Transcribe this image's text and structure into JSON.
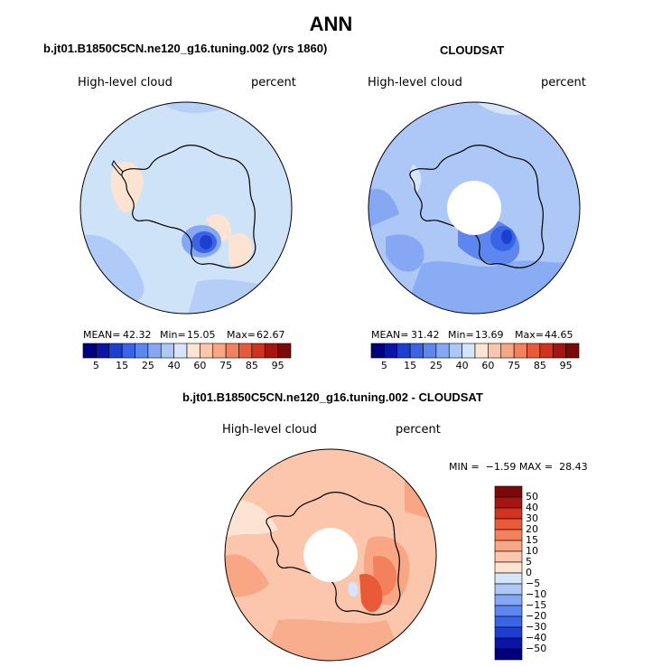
{
  "figure": {
    "title": "ANN",
    "colors": {
      "ocean_background_left": "#cfe3f8",
      "ocean_background_right": "#a9c6f1",
      "diff_background": "#fbc6ad",
      "coastline": "#000000"
    }
  },
  "panels": [
    {
      "id": "model",
      "title": "b.jt01.B1850C5CN.ne120_g16.tuning.002 (yrs 1860)",
      "variable": "High-level cloud",
      "units": "percent",
      "stats": {
        "mean_label": "MEAN=",
        "mean": "42.32",
        "min_label": "Min=",
        "min": "15.05",
        "max_label": "Max=",
        "max": "62.67"
      }
    },
    {
      "id": "obs",
      "title": "CLOUDSAT",
      "variable": "High-level cloud",
      "units": "percent",
      "stats": {
        "mean_label": "MEAN=",
        "mean": "31.42",
        "min_label": "Min=",
        "min": "13.69",
        "max_label": "Max=",
        "max": "44.65"
      }
    },
    {
      "id": "diff",
      "title": "b.jt01.B1850C5CN.ne120_g16.tuning.002 - CLOUDSAT",
      "variable": "High-level cloud",
      "units": "percent",
      "minmax_text": "MIN =  −1.59 MAX =  28.43"
    }
  ],
  "colorbar_abs": {
    "colors": [
      "#00007f",
      "#0a14a8",
      "#1c3fd0",
      "#3a64e6",
      "#5e86ef",
      "#86a8f4",
      "#adc8f7",
      "#d5e5fa",
      "#fde3d2",
      "#fbc6ab",
      "#f8a684",
      "#f3815d",
      "#e95a38",
      "#d03420",
      "#a61512",
      "#7a0a0a"
    ],
    "tick_labels": [
      "5",
      "15",
      "25",
      "40",
      "60",
      "75",
      "85",
      "95"
    ]
  },
  "colorbar_diff": {
    "colors": [
      "#00007f",
      "#0a14a8",
      "#1c3fd0",
      "#3a64e6",
      "#5e86ef",
      "#86a8f4",
      "#adc8f7",
      "#d5e5fa",
      "#fde3d2",
      "#fbc6ab",
      "#f8a684",
      "#f3815d",
      "#e95a38",
      "#d03420",
      "#a61512",
      "#7a0a0a"
    ],
    "tick_labels": [
      "50",
      "40",
      "30",
      "20",
      "15",
      "10",
      "5",
      "0",
      "−5",
      "−10",
      "−15",
      "−20",
      "−30",
      "−40",
      "−50"
    ]
  }
}
